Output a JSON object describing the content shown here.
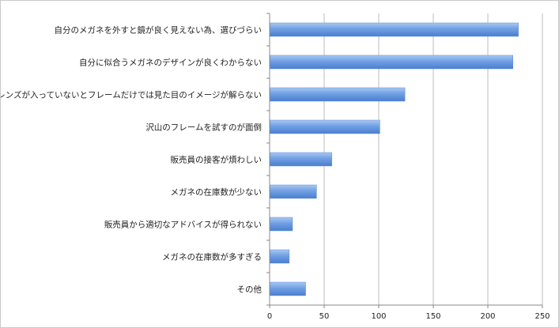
{
  "chart_data": {
    "type": "bar",
    "orientation": "horizontal",
    "categories": [
      "自分のメガネを外すと鏡が良く見えない為、選びづらい",
      "自分に似合うメガネのデザインが良くわからない",
      "実際にレンズが入っていないとフレームだけでは見た目のイメージが解らない",
      "沢山のフレームを試すのが面倒",
      "販売員の接客が煩わしい",
      "メガネの在庫数が少ない",
      "販売員から適切なアドバイスが得られない",
      "メガネの在庫数が多すぎる",
      "その他"
    ],
    "values": [
      228,
      223,
      124,
      101,
      57,
      43,
      21,
      18,
      33
    ],
    "xlim": [
      0,
      250
    ],
    "xticks": [
      0,
      50,
      100,
      150,
      200,
      250
    ],
    "grid": "vertical",
    "bar_color": "#6f9fe3",
    "title": "",
    "xlabel": "",
    "ylabel": ""
  }
}
